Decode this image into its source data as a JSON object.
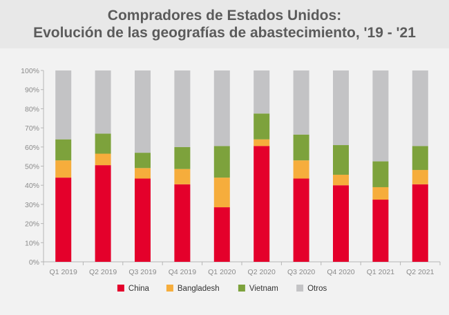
{
  "header": {
    "title_line1": "Compradores de Estados Unidos:",
    "title_line2": "Evolución de las geografías de abastecimiento, '19 - '21"
  },
  "chart_data": {
    "type": "bar",
    "stacked": true,
    "title": "Compradores de Estados Unidos: Evolución de las geografías de abastecimiento, '19 - '21",
    "categories": [
      "Q1 2019",
      "Q2 2019",
      "Q3 2019",
      "Q4 2019",
      "Q1 2020",
      "Q2 2020",
      "Q3 2020",
      "Q4 2020",
      "Q1 2021",
      "Q2 2021"
    ],
    "series": [
      {
        "name": "China",
        "color": "#e4002b",
        "values": [
          44,
          50.5,
          43.5,
          40.5,
          28.5,
          60.5,
          43.5,
          40,
          32.5,
          40.5
        ]
      },
      {
        "name": "Bangladesh",
        "color": "#f6ad3c",
        "values": [
          9,
          6,
          5.5,
          8,
          15.5,
          3.5,
          9.5,
          5.5,
          6.5,
          7.5
        ]
      },
      {
        "name": "Vietnam",
        "color": "#7da23c",
        "values": [
          11,
          10.5,
          8,
          11.5,
          16.5,
          13.5,
          13.5,
          15.5,
          13.5,
          12.5
        ]
      },
      {
        "name": "Otros",
        "color": "#c3c3c5",
        "values": [
          36,
          33,
          43,
          40,
          39.5,
          22.5,
          33.5,
          39,
          47.5,
          39.5
        ]
      }
    ],
    "yticks": [
      "0%",
      "10%",
      "20%",
      "30%",
      "40%",
      "50%",
      "60%",
      "70%",
      "80%",
      "90%",
      "100%"
    ],
    "ylim": [
      0,
      100
    ],
    "legend_position": "bottom",
    "grid": false
  }
}
